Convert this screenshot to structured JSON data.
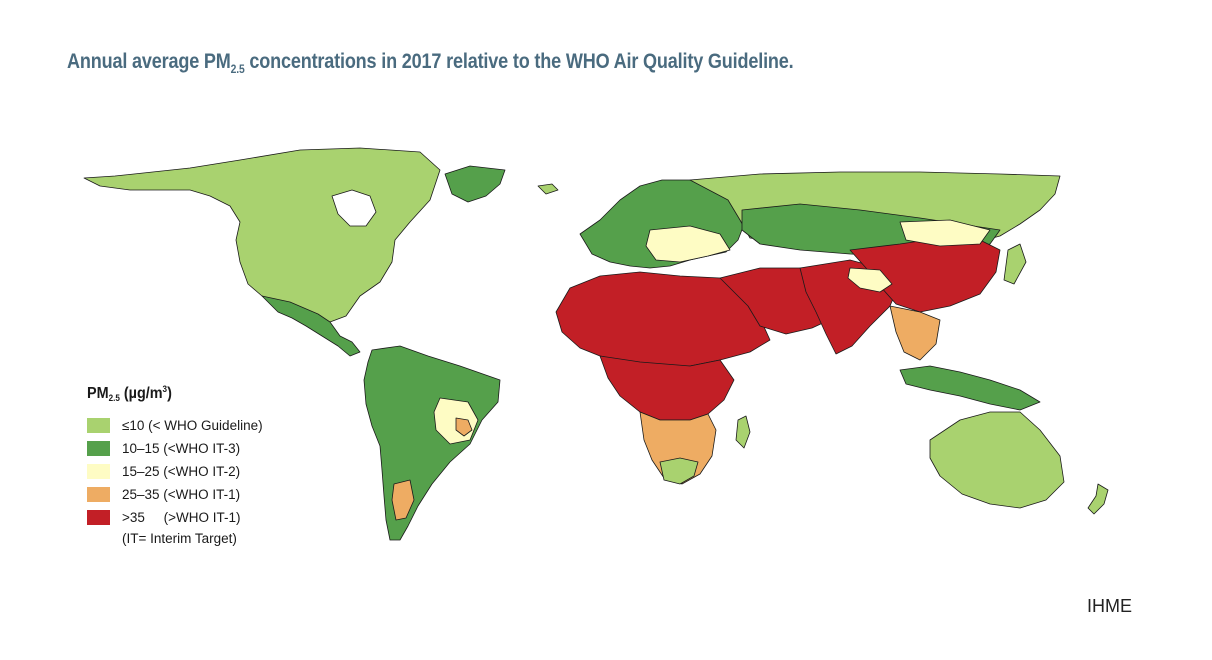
{
  "title": {
    "prefix": "Annual average PM",
    "subscript": "2.5",
    "suffix": " concentrations in 2017 relative to the WHO Air Quality Guideline."
  },
  "legend": {
    "title_prefix": "PM",
    "title_subscript": "2.5",
    "title_unit": " (µg/m",
    "title_unit_sup": "3",
    "title_unit_close": ")",
    "items": [
      {
        "label": "≤10 (< WHO Guideline)",
        "color": "#a9d26f"
      },
      {
        "label": "10–15 (<WHO IT-3)",
        "color": "#55a04b"
      },
      {
        "label": "15–25 (<WHO IT-2)",
        "color": "#fefcc4"
      },
      {
        "label": "25–35 (<WHO IT-1)",
        "color": "#eeac63"
      },
      {
        "label": ">35     (>WHO IT-1)",
        "color": "#c21f26"
      }
    ],
    "note": "(IT= Interim Target)"
  },
  "source": "IHME",
  "colors": {
    "guideline": "#a9d26f",
    "it3": "#55a04b",
    "it2": "#fefcc4",
    "it1": "#eeac63",
    "above_it1": "#c21f26",
    "border": "#1a1a1a",
    "title": "#4a6b7f"
  }
}
